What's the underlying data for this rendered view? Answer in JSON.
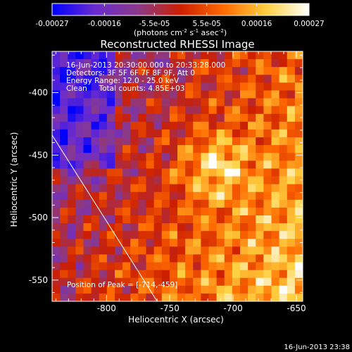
{
  "colorbar": {
    "tick_labels": [
      "-0.00027",
      "-0.00016",
      "-5.5e-05",
      "5.5e-05",
      "0.00016",
      "0.00027"
    ],
    "tick_values": [
      -0.00027,
      -0.00016,
      -5.5e-05,
      5.5e-05,
      0.00016,
      0.00027
    ],
    "range": [
      -0.00027,
      0.00027
    ],
    "units_label": "(photons cm",
    "units_sup1": "-2",
    "units_mid": " s",
    "units_sup2": "-1",
    "units_end": " asec",
    "units_sup3": "-2",
    "units_close": ")",
    "gradient_stops": [
      "#0000ff",
      "#6a2bd0",
      "#8a3a8a",
      "#cc1f00",
      "#ff6a00",
      "#ffd040",
      "#ffffff"
    ]
  },
  "chart_data": {
    "type": "heatmap",
    "title": "Reconstructed RHESSI Image",
    "xlabel": "Heliocentric X (arcsec)",
    "ylabel": "Heliocentric Y (arcsec)",
    "xlim": [
      -843,
      -645
    ],
    "ylim": [
      -567,
      -367
    ],
    "x_ticks": [
      -800,
      -750,
      -700,
      -650
    ],
    "y_ticks": [
      -550,
      -500,
      -450,
      -400
    ],
    "x_tick_labels": [
      "-800",
      "-750",
      "-700",
      "-650"
    ],
    "y_tick_labels": [
      "-550",
      "-500",
      "-450",
      "-400"
    ],
    "info_lines": [
      "16-Jun-2013 20:30:00.000 to 20:33:28.000",
      "Detectors: 3F 5F 6F 7F 8F 9F, Att 0",
      "Energy Range: 12.0 - 25.0 keV",
      "Clean     Total counts: 4.85E+03"
    ],
    "peak_label": "Position of Peak = [-714,-459]",
    "peak": {
      "x": -714,
      "y": -459
    },
    "limb_line": [
      {
        "x": -843,
        "y": -434
      },
      {
        "x": -760,
        "y": -567
      }
    ]
  },
  "footer_timestamp": "16-Jun-2013 23:38"
}
